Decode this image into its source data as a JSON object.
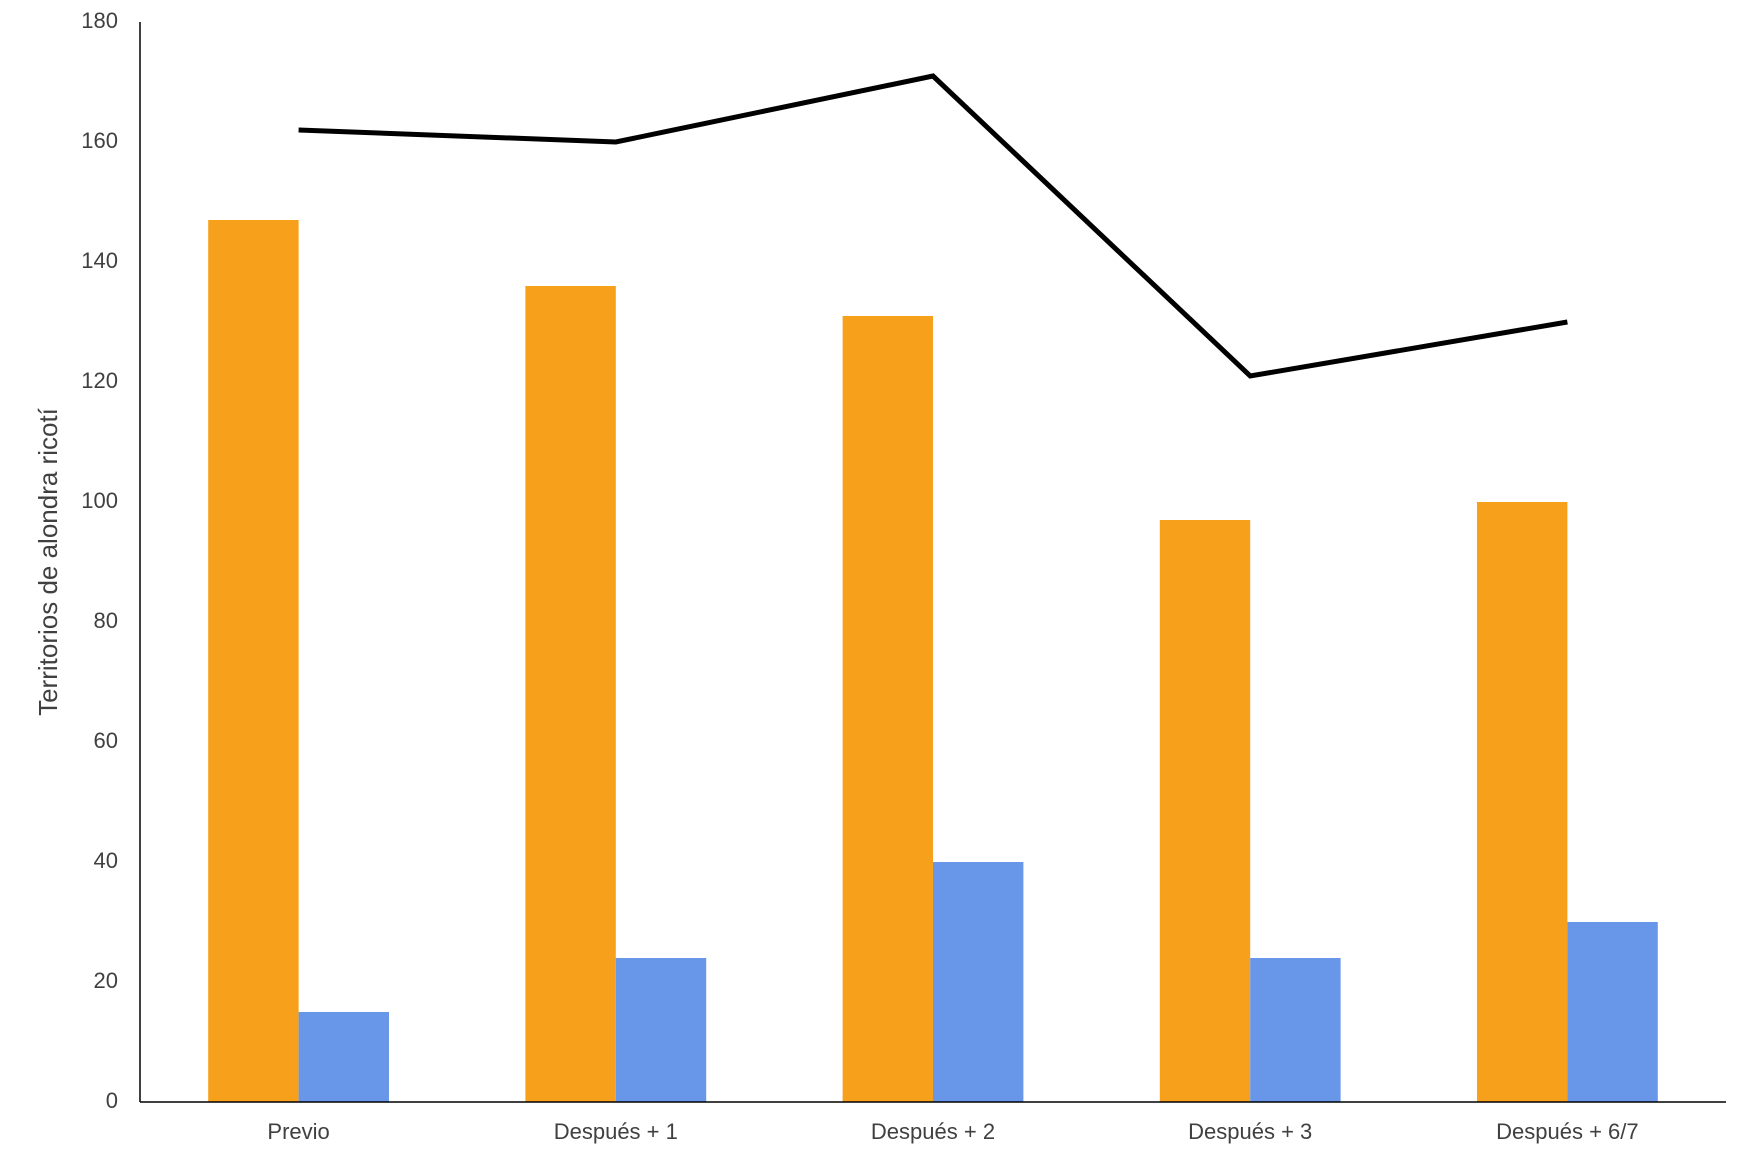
{
  "chart_data": {
    "type": "bar",
    "y_label": "Territorios de alondra ricotí",
    "categories": [
      "Previo",
      "Después + 1",
      "Después + 2",
      "Después + 3",
      "Después + 6/7"
    ],
    "series": [
      {
        "type": "bar",
        "color": "#f7a01c",
        "values": [
          147,
          136,
          131,
          97,
          100
        ]
      },
      {
        "type": "bar",
        "color": "#6897ea",
        "values": [
          15,
          24,
          40,
          24,
          30
        ]
      },
      {
        "type": "line",
        "color": "#000000",
        "values": [
          162,
          160,
          171,
          121,
          130
        ]
      }
    ],
    "ylim": [
      0,
      180
    ],
    "yticks": [
      0,
      20,
      40,
      60,
      80,
      100,
      120,
      140,
      160,
      180
    ],
    "grid": false
  }
}
